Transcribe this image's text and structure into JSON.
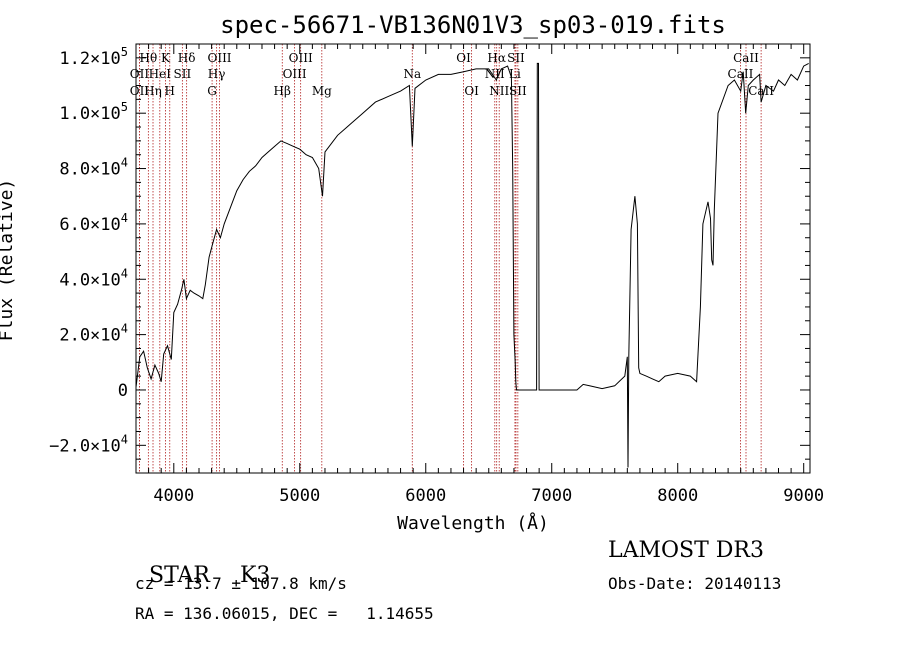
{
  "chart_data": {
    "type": "line",
    "title": "spec-56671-VB136N01V3_sp03-019.fits",
    "xlabel": "Wavelength (Å)",
    "ylabel": "Flux (Relative)",
    "xlim": [
      3700,
      9050
    ],
    "ylim": [
      -30000,
      125000
    ],
    "x_ticks": [
      4000,
      5000,
      6000,
      7000,
      8000,
      9000
    ],
    "x_tick_labels": [
      "4000",
      "5000",
      "6000",
      "7000",
      "8000",
      "9000"
    ],
    "y_ticks": [
      -20000,
      0,
      20000,
      40000,
      60000,
      80000,
      100000,
      120000
    ],
    "y_tick_labels": [
      {
        "mant": "−2.0×10",
        "exp": "4"
      },
      {
        "mant": "0",
        "exp": ""
      },
      {
        "mant": "2.0×10",
        "exp": "4"
      },
      {
        "mant": "4.0×10",
        "exp": "4"
      },
      {
        "mant": "6.0×10",
        "exp": "4"
      },
      {
        "mant": "8.0×10",
        "exp": "4"
      },
      {
        "mant": "1.0×10",
        "exp": "5"
      },
      {
        "mant": "1.2×10",
        "exp": "5"
      }
    ],
    "series": [
      {
        "name": "spectrum",
        "points": [
          [
            3700,
            1000
          ],
          [
            3730,
            12000
          ],
          [
            3760,
            14000
          ],
          [
            3790,
            8000
          ],
          [
            3820,
            4000
          ],
          [
            3850,
            9000
          ],
          [
            3880,
            6000
          ],
          [
            3900,
            3000
          ],
          [
            3920,
            13000
          ],
          [
            3950,
            16000
          ],
          [
            3980,
            11000
          ],
          [
            4000,
            28000
          ],
          [
            4030,
            31000
          ],
          [
            4060,
            36000
          ],
          [
            4080,
            40000
          ],
          [
            4100,
            33000
          ],
          [
            4130,
            36000
          ],
          [
            4160,
            35000
          ],
          [
            4200,
            34000
          ],
          [
            4230,
            33000
          ],
          [
            4250,
            38000
          ],
          [
            4280,
            48000
          ],
          [
            4310,
            53000
          ],
          [
            4340,
            58000
          ],
          [
            4370,
            55000
          ],
          [
            4400,
            60000
          ],
          [
            4450,
            66000
          ],
          [
            4500,
            72000
          ],
          [
            4550,
            76000
          ],
          [
            4600,
            79000
          ],
          [
            4650,
            81000
          ],
          [
            4700,
            84000
          ],
          [
            4750,
            86000
          ],
          [
            4800,
            88000
          ],
          [
            4850,
            90000
          ],
          [
            4900,
            89000
          ],
          [
            4950,
            88000
          ],
          [
            5000,
            87000
          ],
          [
            5050,
            85000
          ],
          [
            5100,
            84000
          ],
          [
            5150,
            80000
          ],
          [
            5180,
            70000
          ],
          [
            5200,
            86000
          ],
          [
            5300,
            92000
          ],
          [
            5400,
            96000
          ],
          [
            5500,
            100000
          ],
          [
            5600,
            104000
          ],
          [
            5700,
            106000
          ],
          [
            5800,
            108000
          ],
          [
            5870,
            110000
          ],
          [
            5893,
            88000
          ],
          [
            5915,
            109000
          ],
          [
            6000,
            112000
          ],
          [
            6100,
            114000
          ],
          [
            6200,
            114000
          ],
          [
            6300,
            115000
          ],
          [
            6400,
            116000
          ],
          [
            6500,
            116000
          ],
          [
            6560,
            112000
          ],
          [
            6600,
            116000
          ],
          [
            6650,
            117000
          ],
          [
            6680,
            113000
          ],
          [
            6690,
            80000
          ],
          [
            6700,
            20000
          ],
          [
            6710,
            10000
          ],
          [
            6715,
            3000
          ],
          [
            6720,
            0
          ],
          [
            6800,
            0
          ],
          [
            6880,
            0
          ],
          [
            6885,
            118000
          ],
          [
            6895,
            118000
          ],
          [
            6900,
            0
          ],
          [
            7000,
            0
          ],
          [
            7100,
            0
          ],
          [
            7200,
            0
          ],
          [
            7250,
            2000
          ],
          [
            7300,
            1500
          ],
          [
            7400,
            500
          ],
          [
            7500,
            1500
          ],
          [
            7580,
            5000
          ],
          [
            7600,
            12000
          ],
          [
            7605,
            -28000
          ],
          [
            7612,
            12000
          ],
          [
            7630,
            58000
          ],
          [
            7660,
            70000
          ],
          [
            7680,
            60000
          ],
          [
            7690,
            8000
          ],
          [
            7700,
            6000
          ],
          [
            7750,
            5000
          ],
          [
            7800,
            4000
          ],
          [
            7850,
            3000
          ],
          [
            7900,
            5000
          ],
          [
            8000,
            6000
          ],
          [
            8100,
            5000
          ],
          [
            8150,
            3000
          ],
          [
            8180,
            30000
          ],
          [
            8200,
            60000
          ],
          [
            8240,
            68000
          ],
          [
            8260,
            62000
          ],
          [
            8270,
            47000
          ],
          [
            8280,
            45000
          ],
          [
            8290,
            65000
          ],
          [
            8320,
            100000
          ],
          [
            8400,
            110000
          ],
          [
            8450,
            112000
          ],
          [
            8500,
            108000
          ],
          [
            8520,
            115000
          ],
          [
            8540,
            100000
          ],
          [
            8560,
            110000
          ],
          [
            8600,
            112000
          ],
          [
            8650,
            114000
          ],
          [
            8662,
            104000
          ],
          [
            8700,
            110000
          ],
          [
            8760,
            108000
          ],
          [
            8800,
            112000
          ],
          [
            8850,
            110000
          ],
          [
            8900,
            114000
          ],
          [
            8950,
            112000
          ],
          [
            9000,
            117000
          ],
          [
            9040,
            118000
          ]
        ]
      }
    ],
    "lines": [
      {
        "x": 3798,
        "label": "Hθ",
        "row": 0
      },
      {
        "x": 3727,
        "label": "OII",
        "row": 1
      },
      {
        "x": 3727,
        "label": "OII",
        "row": 2
      },
      {
        "x": 3835,
        "label": "Hη",
        "row": 2
      },
      {
        "x": 3889,
        "label": "HeI",
        "row": 1
      },
      {
        "x": 3934,
        "label": "K",
        "row": 0
      },
      {
        "x": 3968,
        "label": "H",
        "row": 2
      },
      {
        "x": 4068,
        "label": "SII",
        "row": 1
      },
      {
        "x": 4102,
        "label": "Hδ",
        "row": 0
      },
      {
        "x": 4304,
        "label": "G",
        "row": 2
      },
      {
        "x": 4340,
        "label": "Hγ",
        "row": 1
      },
      {
        "x": 4363,
        "label": "OIII",
        "row": 0
      },
      {
        "x": 4861,
        "label": "Hβ",
        "row": 2
      },
      {
        "x": 4959,
        "label": "OIII",
        "row": 1
      },
      {
        "x": 5007,
        "label": "OIII",
        "row": 0
      },
      {
        "x": 5175,
        "label": "Mg",
        "row": 2
      },
      {
        "x": 5893,
        "label": "Na",
        "row": 1
      },
      {
        "x": 6300,
        "label": "OI",
        "row": 0
      },
      {
        "x": 6364,
        "label": "OI",
        "row": 2
      },
      {
        "x": 6548,
        "label": "NII",
        "row": 1
      },
      {
        "x": 6563,
        "label": "Hα",
        "row": 0
      },
      {
        "x": 6583,
        "label": "NII",
        "row": 2
      },
      {
        "x": 6708,
        "label": "Li",
        "row": 1
      },
      {
        "x": 6716,
        "label": "SII",
        "row": 0
      },
      {
        "x": 6731,
        "label": "SII",
        "row": 2
      },
      {
        "x": 8498,
        "label": "CaII",
        "row": 1
      },
      {
        "x": 8542,
        "label": "CaII",
        "row": 0
      },
      {
        "x": 8662,
        "label": "CaII",
        "row": 2
      }
    ]
  },
  "info": {
    "object_class": "STAR",
    "subclass": "K3",
    "cz": "cz = 13.7 ± 107.8 km/s",
    "coords": "RA = 136.06015, DEC =   1.14655",
    "survey": "LAMOST DR3",
    "obs_date": "Obs-Date: 20140113"
  },
  "colors": {
    "axis": "#000000",
    "spectrum": "#000000",
    "line_markers": "#b22222"
  }
}
